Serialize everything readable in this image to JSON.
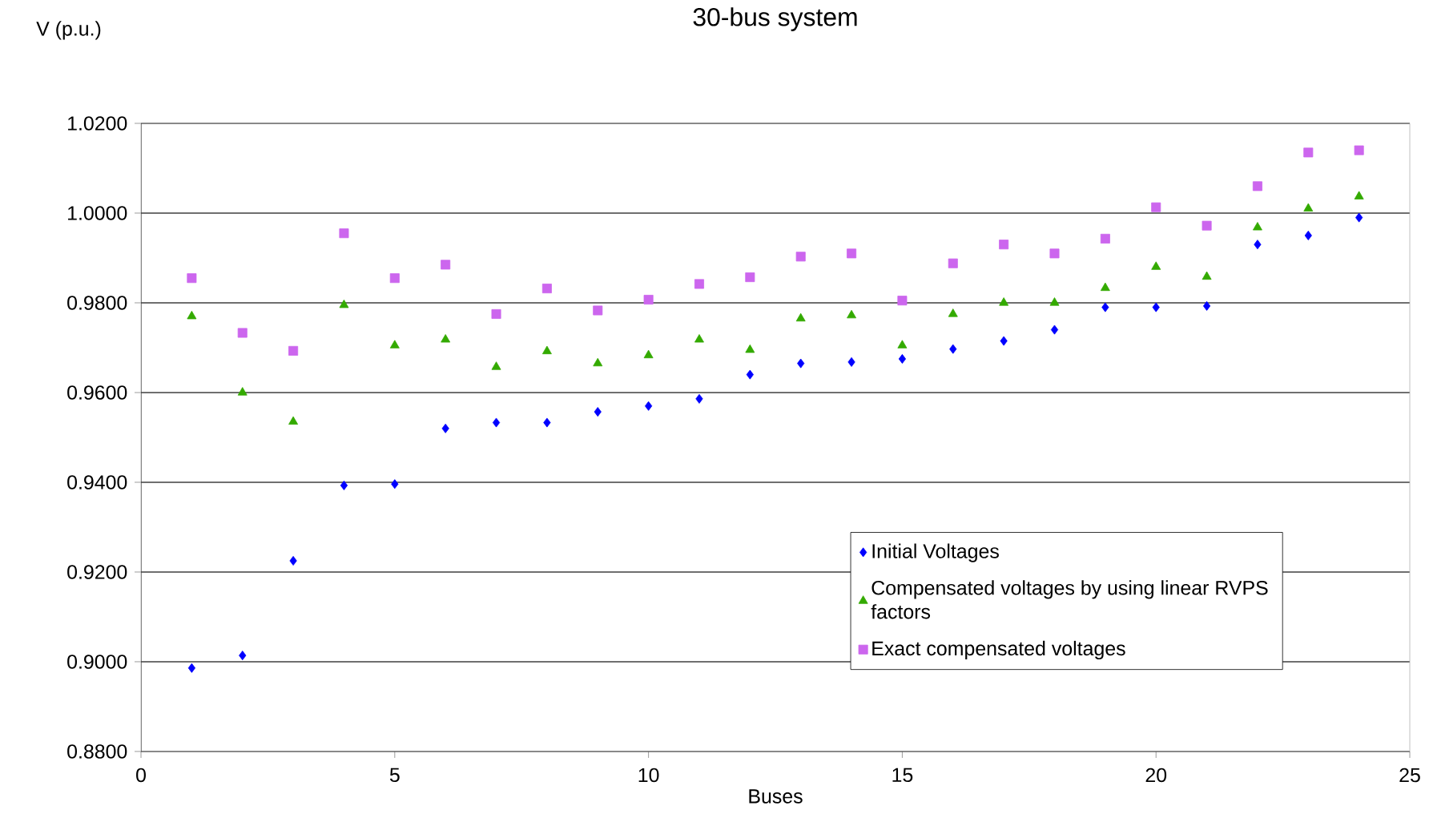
{
  "chart_data": {
    "type": "scatter",
    "title": "30-bus system",
    "ylabel": "V (p.u.)",
    "xlabel": "Buses",
    "x": [
      1,
      2,
      3,
      4,
      5,
      6,
      7,
      8,
      9,
      10,
      11,
      12,
      13,
      14,
      15,
      16,
      17,
      18,
      19,
      20,
      21,
      22,
      23,
      24
    ],
    "series": [
      {
        "name": "Initial Voltages",
        "color": "#0000ff",
        "marker": "diamond",
        "values": [
          0.8986,
          0.9014,
          0.9225,
          0.9393,
          0.9396,
          0.952,
          0.9533,
          0.9533,
          0.9557,
          0.957,
          0.9586,
          0.964,
          0.9665,
          0.9668,
          0.9675,
          0.9697,
          0.9715,
          0.974,
          0.979,
          0.979,
          0.9793,
          0.993,
          0.995,
          0.999
        ]
      },
      {
        "name": "Compensated voltages by using linear RVPS factors",
        "color": "#33aa00",
        "marker": "triangle",
        "values": [
          0.977,
          0.96,
          0.9535,
          0.9795,
          0.9705,
          0.9718,
          0.9657,
          0.9692,
          0.9665,
          0.9683,
          0.9718,
          0.9695,
          0.9765,
          0.9772,
          0.9705,
          0.9775,
          0.98,
          0.98,
          0.9833,
          0.988,
          0.9858,
          0.9968,
          1.001,
          1.0037
        ]
      },
      {
        "name": "Exact compensated voltages",
        "color": "#cc66ee",
        "marker": "square",
        "values": [
          0.9855,
          0.9733,
          0.9693,
          0.9955,
          0.9855,
          0.9885,
          0.9775,
          0.9832,
          0.9783,
          0.9807,
          0.9842,
          0.9857,
          0.9903,
          0.991,
          0.9805,
          0.9888,
          0.993,
          0.991,
          0.9943,
          1.0013,
          0.9972,
          1.006,
          1.0135,
          1.014
        ]
      }
    ],
    "xlim": [
      0,
      25
    ],
    "xticks": [
      0,
      5,
      10,
      15,
      20,
      25
    ],
    "ylim": [
      0.88,
      1.02
    ],
    "yticks": [
      {
        "value": 0.88,
        "label": "0.8800"
      },
      {
        "value": 0.9,
        "label": "0.9000"
      },
      {
        "value": 0.92,
        "label": "0.9200"
      },
      {
        "value": 0.94,
        "label": "0.9400"
      },
      {
        "value": 0.96,
        "label": "0.9600"
      },
      {
        "value": 0.98,
        "label": "0.9800"
      },
      {
        "value": 1.0,
        "label": "1.0000"
      },
      {
        "value": 1.02,
        "label": "1.0200"
      }
    ],
    "grid": "y",
    "legend": "bottom right"
  }
}
